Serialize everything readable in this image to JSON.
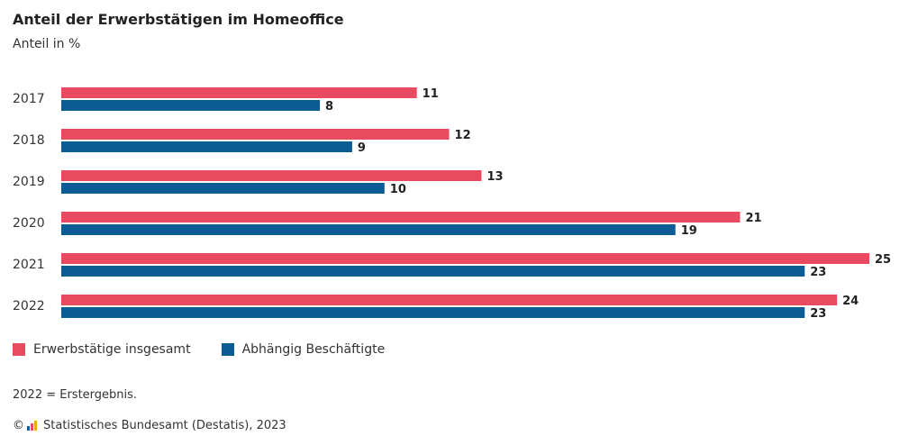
{
  "header": {
    "title": "Anteil der Erwerbstätigen im Homeoffice",
    "subtitle": "Anteil in %"
  },
  "legend": {
    "items": [
      {
        "label": "Erwerbstätige insgesamt",
        "color": "#e84a5f"
      },
      {
        "label": "Abhängig Beschäftigte",
        "color": "#0b5b95"
      }
    ]
  },
  "footer": {
    "footnote": "2022 = Erstergebnis.",
    "copyright": "©",
    "source_icon": "destatis-logo-icon",
    "source": "Statistisches Bundesamt (Destatis), 2023"
  },
  "chart_data": {
    "type": "bar",
    "orientation": "horizontal",
    "title": "Anteil der Erwerbstätigen im Homeoffice",
    "subtitle": "Anteil in %",
    "categories": [
      "2017",
      "2018",
      "2019",
      "2020",
      "2021",
      "2022"
    ],
    "series": [
      {
        "name": "Erwerbstätige insgesamt",
        "color": "#e84a5f",
        "values": [
          11,
          12,
          13,
          21,
          25,
          24
        ]
      },
      {
        "name": "Abhängig Beschäftigte",
        "color": "#0b5b95",
        "values": [
          8,
          9,
          10,
          19,
          23,
          23
        ]
      }
    ],
    "xlim": [
      0,
      25
    ],
    "grid": false,
    "data_labels": true,
    "legend_position": "bottom-left"
  }
}
